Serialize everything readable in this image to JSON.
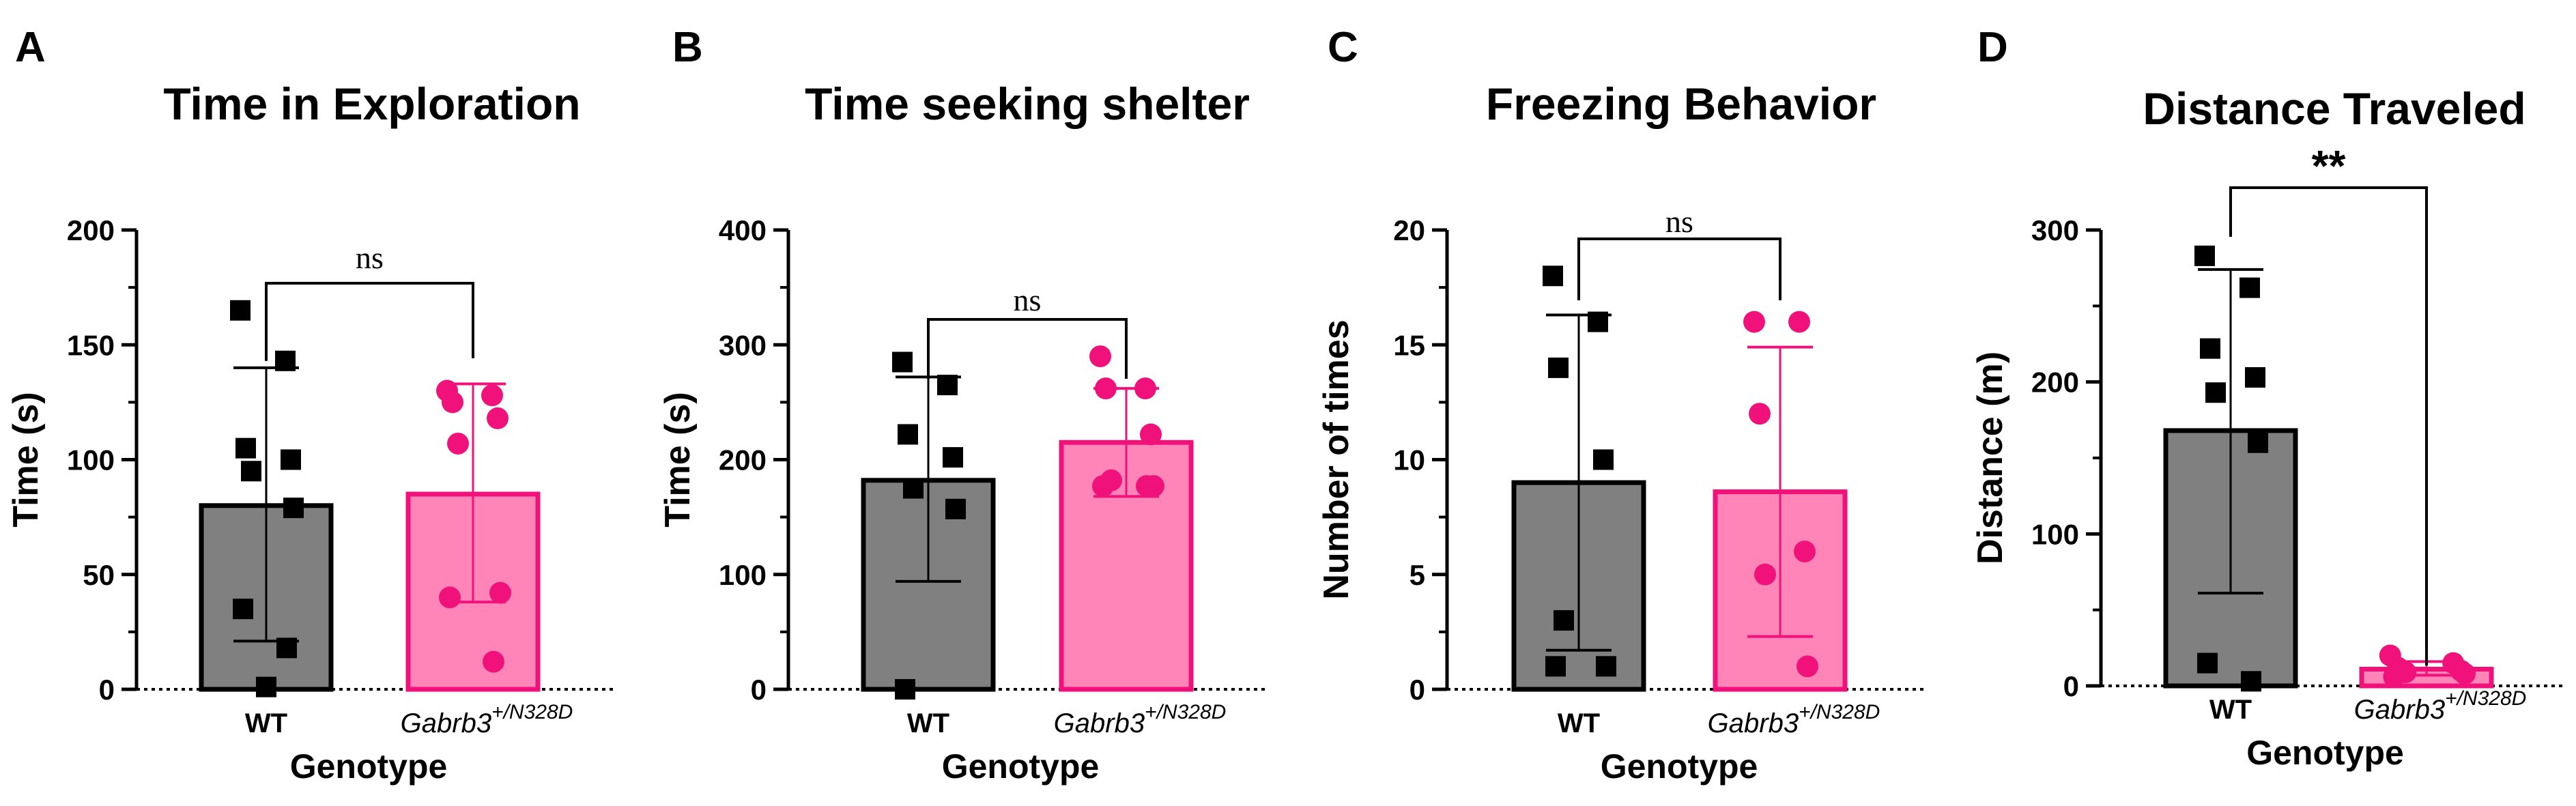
{
  "figure": {
    "colors": {
      "wt_bar": "#808080",
      "wt_marker": "#000000",
      "mut_bar": "#ff85b8",
      "mut_stroke": "#f0127a",
      "mut_marker": "#f0127a"
    }
  },
  "chart_data": [
    {
      "panel": "A",
      "type": "bar",
      "title": "Time in Exploration",
      "xlabel": "Genotype",
      "ylabel": "Time (s)",
      "ylim": [
        0,
        200
      ],
      "yticks": [
        0,
        50,
        100,
        150,
        200
      ],
      "categories": [
        "WT",
        "Gabrb3",
        "+/N328D"
      ],
      "category_labels": [
        {
          "base": "WT",
          "sup": ""
        },
        {
          "base": "Gabrb3",
          "sup": "+/N328D"
        }
      ],
      "series": [
        {
          "name": "WT",
          "mean": 80,
          "error_low": 21,
          "error_high": 140,
          "points": [
            165,
            143,
            105,
            100,
            95,
            79,
            35,
            18,
            1
          ]
        },
        {
          "name": "Gabrb3+/N328D",
          "mean": 85,
          "error_low": 38,
          "error_high": 133,
          "points": [
            130,
            128,
            125,
            118,
            107,
            42,
            40,
            12
          ]
        }
      ],
      "significance": "ns"
    },
    {
      "panel": "B",
      "type": "bar",
      "title": "Time seeking shelter",
      "xlabel": "Genotype",
      "ylabel": "Time (s)",
      "ylim": [
        0,
        400
      ],
      "yticks": [
        0,
        100,
        200,
        300,
        400
      ],
      "categories": [
        "WT",
        "Gabrb3",
        "+/N328D"
      ],
      "category_labels": [
        {
          "base": "WT",
          "sup": ""
        },
        {
          "base": "Gabrb3",
          "sup": "+/N328D"
        }
      ],
      "series": [
        {
          "name": "WT",
          "mean": 182,
          "error_low": 94,
          "error_high": 272,
          "points": [
            285,
            265,
            222,
            202,
            175,
            157,
            0
          ]
        },
        {
          "name": "Gabrb3+/N328D",
          "mean": 215,
          "error_low": 168,
          "error_high": 262,
          "points": [
            290,
            262,
            262,
            222,
            182,
            177,
            177,
            177
          ]
        }
      ],
      "significance": "ns"
    },
    {
      "panel": "C",
      "type": "bar",
      "title": "Freezing Behavior",
      "xlabel": "Genotype",
      "ylabel": "Number of times",
      "ylim": [
        0,
        20
      ],
      "yticks": [
        0,
        5,
        10,
        15,
        20
      ],
      "categories": [
        "WT",
        "Gabrb3",
        "+/N328D"
      ],
      "category_labels": [
        {
          "base": "WT",
          "sup": ""
        },
        {
          "base": "Gabrb3",
          "sup": "+/N328D"
        }
      ],
      "series": [
        {
          "name": "WT",
          "mean": 9,
          "error_low": 1.7,
          "error_high": 16.3,
          "points": [
            18,
            16,
            14,
            10,
            3,
            1,
            1
          ]
        },
        {
          "name": "Gabrb3+/N328D",
          "mean": 8.6,
          "error_low": 2.3,
          "error_high": 14.9,
          "points": [
            16,
            16,
            12,
            6,
            5,
            1
          ]
        }
      ],
      "significance": "ns"
    },
    {
      "panel": "D",
      "type": "bar",
      "title": "Distance Traveled",
      "xlabel": "Genotype",
      "ylabel": "Distance (m)",
      "ylim": [
        0,
        300
      ],
      "yticks": [
        0,
        100,
        200,
        300
      ],
      "categories": [
        "WT",
        "Gabrb3",
        "+/N328D"
      ],
      "category_labels": [
        {
          "base": "WT",
          "sup": ""
        },
        {
          "base": "Gabrb3",
          "sup": "+/N328D"
        }
      ],
      "series": [
        {
          "name": "WT",
          "mean": 168,
          "error_low": 61,
          "error_high": 274,
          "points": [
            283,
            262,
            222,
            203,
            193,
            160,
            15,
            3
          ]
        },
        {
          "name": "Gabrb3+/N328D",
          "mean": 11,
          "error_low": 7,
          "error_high": 16,
          "points": [
            20,
            15,
            12,
            10,
            9,
            8,
            6
          ]
        }
      ],
      "significance": "**"
    }
  ]
}
